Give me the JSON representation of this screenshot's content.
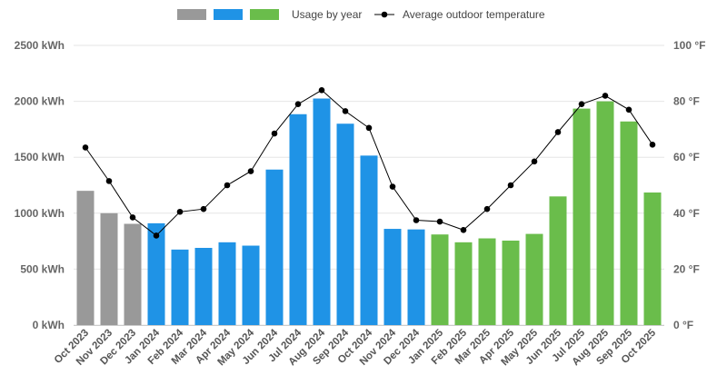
{
  "chart_data": {
    "type": "bar",
    "title": "",
    "legend": {
      "placement": "top-center",
      "swatch_colors": [
        "#999999",
        "#1f93e6",
        "#6abd4b"
      ],
      "bars_label": "Usage by year",
      "line_label": "Average outdoor temperature"
    },
    "categories": [
      "Oct 2023",
      "Nov 2023",
      "Dec 2023",
      "Jan 2024",
      "Feb 2024",
      "Mar 2024",
      "Apr 2024",
      "May 2024",
      "Jun 2024",
      "Jul 2024",
      "Aug 2024",
      "Sep 2024",
      "Oct 2024",
      "Nov 2024",
      "Dec 2024",
      "Jan 2025",
      "Feb 2025",
      "Mar 2025",
      "Apr 2025",
      "May 2025",
      "Jun 2025",
      "Jul 2025",
      "Aug 2025",
      "Sep 2025",
      "Oct 2025"
    ],
    "year_colors": {
      "2023": "#999999",
      "2024": "#1f93e6",
      "2025": "#6abd4b"
    },
    "usage_kwh": [
      1200,
      1000,
      905,
      910,
      675,
      690,
      740,
      710,
      1390,
      1885,
      2025,
      1800,
      1515,
      860,
      855,
      810,
      740,
      775,
      755,
      815,
      1150,
      1935,
      2000,
      1820,
      1185
    ],
    "avg_temp_f": [
      63.5,
      51.5,
      38.5,
      32,
      40.5,
      41.5,
      50,
      55,
      68.5,
      79,
      84,
      76.5,
      70.5,
      49.5,
      37.5,
      37,
      34,
      41.5,
      50,
      58.5,
      69,
      79,
      82,
      77,
      64.5
    ],
    "left_axis": {
      "ticks": [
        "0 kWh",
        "500 kWh",
        "1000 kWh",
        "1500 kWh",
        "2000 kWh",
        "2500 kWh"
      ],
      "ylim": [
        0,
        2500
      ]
    },
    "right_axis": {
      "ticks": [
        "0 °F",
        "20 °F",
        "40 °F",
        "60 °F",
        "80 °F",
        "100 °F"
      ],
      "ylim": [
        0,
        100
      ]
    },
    "line_color": "#000000",
    "grid": true
  }
}
